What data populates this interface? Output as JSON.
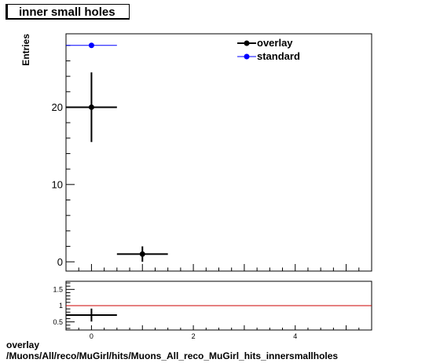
{
  "title": "inner small holes",
  "footer": {
    "line1": "overlay",
    "line2": "/Muons/All/reco/MuGirl/hits/Muons_All_reco_MuGirl_hits_innersmallholes"
  },
  "colors": {
    "overlay": "#000000",
    "standard": "#0000ff",
    "ratio_line": "#cc0000"
  },
  "chart_data": [
    {
      "type": "scatter",
      "ylabel": "Entries",
      "xlim": [
        -0.5,
        5.5
      ],
      "ylim": [
        -1.2,
        29.5
      ],
      "yticks": [
        0,
        10,
        20
      ],
      "legend": {
        "placement": "top-right",
        "entries": [
          "overlay",
          "standard"
        ]
      },
      "series": [
        {
          "name": "overlay",
          "points": [
            {
              "x": 0,
              "xerr": 0.5,
              "y": 20,
              "yerr": 4.5
            },
            {
              "x": 1,
              "xerr": 0.5,
              "y": 1,
              "yerr": 1
            }
          ]
        },
        {
          "name": "standard",
          "points": [
            {
              "x": 0,
              "xerr": 0.5,
              "y": 28,
              "yerr": 0
            }
          ]
        }
      ]
    },
    {
      "type": "scatter",
      "xlim": [
        -0.5,
        5.5
      ],
      "ylim": [
        0.25,
        1.75
      ],
      "xticks": [
        0,
        2,
        4
      ],
      "yticks": [
        0.5,
        1,
        1.5
      ],
      "ytick_labels": [
        "0.5",
        "1",
        "1.5"
      ],
      "reference_line": 1,
      "series": [
        {
          "name": "overlay",
          "points": [
            {
              "x": 0,
              "xerr": 0.5,
              "y": 0.71,
              "yerr": 0.2
            }
          ]
        }
      ]
    }
  ]
}
